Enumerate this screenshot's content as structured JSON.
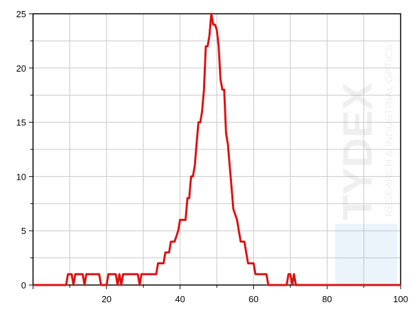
{
  "chart_data": {
    "type": "line",
    "title": "",
    "xlabel": "",
    "ylabel": "",
    "xlim": [
      0,
      100
    ],
    "ylim": [
      0,
      25
    ],
    "xticks": [
      20,
      40,
      60,
      80,
      100
    ],
    "yticks": [
      0,
      5,
      10,
      15,
      20,
      25
    ],
    "grid": true,
    "line_color": "#dd1111",
    "watermark": {
      "brand": "TYDEX",
      "tagline": "RESEARCH & INDUSTRIAL OPTICS"
    },
    "series": [
      {
        "points": [
          [
            0,
            0
          ],
          [
            9,
            0
          ],
          [
            9.5,
            1
          ],
          [
            10.5,
            1
          ],
          [
            11,
            0
          ],
          [
            11.5,
            1
          ],
          [
            13.5,
            1
          ],
          [
            14,
            0
          ],
          [
            14.5,
            1
          ],
          [
            18,
            1
          ],
          [
            18.5,
            0
          ],
          [
            20,
            0
          ],
          [
            20.5,
            1
          ],
          [
            22.5,
            1
          ],
          [
            23,
            0
          ],
          [
            23.5,
            1
          ],
          [
            24,
            0
          ],
          [
            24.5,
            1
          ],
          [
            28.5,
            1
          ],
          [
            29,
            0
          ],
          [
            29.5,
            1
          ],
          [
            33.5,
            1
          ],
          [
            34,
            2
          ],
          [
            35.5,
            2
          ],
          [
            36,
            3
          ],
          [
            37,
            3
          ],
          [
            37.5,
            4
          ],
          [
            38.5,
            4
          ],
          [
            39.5,
            5
          ],
          [
            40,
            6
          ],
          [
            41.5,
            6
          ],
          [
            42,
            8
          ],
          [
            42.5,
            8
          ],
          [
            43,
            10
          ],
          [
            43.5,
            10
          ],
          [
            44,
            11
          ],
          [
            44.5,
            13
          ],
          [
            45,
            15
          ],
          [
            45.5,
            15
          ],
          [
            46,
            16
          ],
          [
            46.5,
            18
          ],
          [
            47,
            22
          ],
          [
            47.5,
            22
          ],
          [
            48,
            23
          ],
          [
            48.5,
            25
          ],
          [
            49,
            24
          ],
          [
            49.5,
            24
          ],
          [
            50,
            23.5
          ],
          [
            50.5,
            22
          ],
          [
            51,
            19
          ],
          [
            51.5,
            18
          ],
          [
            52,
            18
          ],
          [
            52.5,
            14
          ],
          [
            53,
            13
          ],
          [
            53.5,
            11
          ],
          [
            54,
            9
          ],
          [
            54.5,
            7
          ],
          [
            55,
            6.5
          ],
          [
            55.5,
            6
          ],
          [
            56,
            5
          ],
          [
            56.5,
            4
          ],
          [
            57.5,
            4
          ],
          [
            58,
            3
          ],
          [
            58.5,
            2
          ],
          [
            60,
            2
          ],
          [
            60.5,
            1
          ],
          [
            63.5,
            1
          ],
          [
            64,
            0
          ],
          [
            69,
            0
          ],
          [
            69.5,
            1
          ],
          [
            70,
            1
          ],
          [
            70.5,
            0
          ],
          [
            71,
            1
          ],
          [
            71.5,
            0
          ],
          [
            100,
            0
          ]
        ]
      }
    ]
  }
}
